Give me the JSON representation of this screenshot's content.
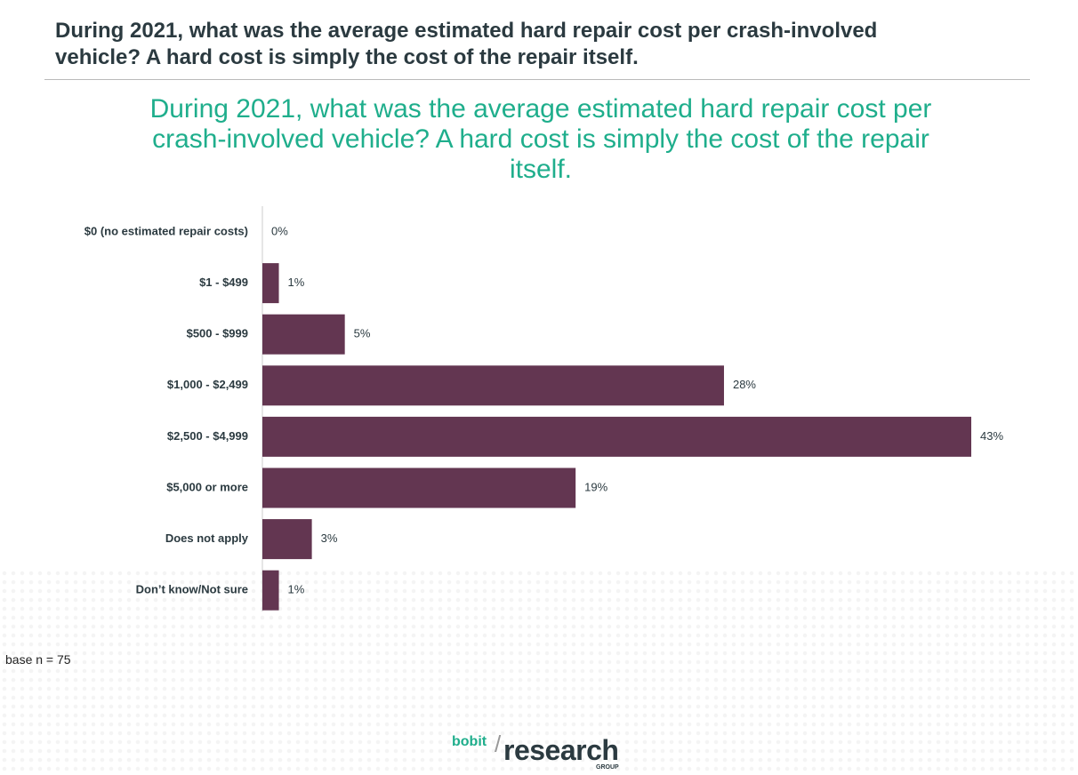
{
  "header": {
    "title": "During 2021, what was the average estimated hard repair cost per crash-involved vehicle? A hard cost is simply the cost of the repair itself."
  },
  "chart_data": {
    "type": "bar",
    "orientation": "horizontal",
    "title": "During 2021, what was the average estimated hard repair cost per crash-involved vehicle? A hard cost is simply the cost of the repair itself.",
    "categories": [
      "$0 (no estimated repair costs)",
      "$1 - $499",
      "$500 - $999",
      "$1,000 - $2,499",
      "$2,500 - $4,999",
      "$5,000 or more",
      "Does not apply",
      "Don’t know/Not sure"
    ],
    "values": [
      0,
      1,
      5,
      28,
      43,
      19,
      3,
      1
    ],
    "value_labels": [
      "0%",
      "1%",
      "5%",
      "28%",
      "43%",
      "19%",
      "3%",
      "1%"
    ],
    "color": "#633651"
  },
  "note": "base n = 75",
  "logo": {
    "brand": "bobit",
    "name": "research",
    "suffix": "GROUP"
  }
}
